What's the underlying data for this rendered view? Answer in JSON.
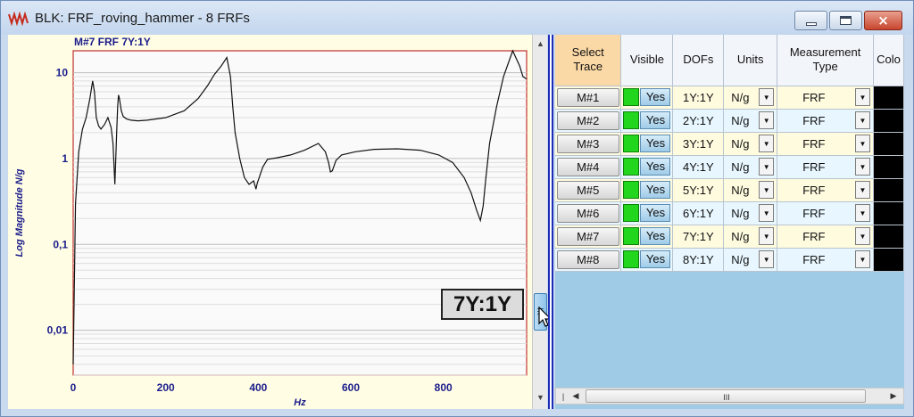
{
  "window": {
    "title": "BLK: FRF_roving_hammer - 8 FRFs",
    "buttons": {
      "minimize": "minimize",
      "maximize": "maximize",
      "close": "×"
    }
  },
  "chart": {
    "title": "M#7  FRF 7Y:1Y",
    "trace_label": "7Y:1Y"
  },
  "chart_data": {
    "type": "line",
    "title": "M#7  FRF 7Y:1Y",
    "xlabel": "Hz",
    "ylabel": "Log Magnitude N/g",
    "xlim": [
      0,
      980
    ],
    "ylim": [
      0.003,
      18
    ],
    "y_scale": "log",
    "x_ticks": [
      "0",
      "200",
      "400",
      "600",
      "800"
    ],
    "y_ticks": [
      "0,01",
      "0,1",
      "1",
      "10"
    ],
    "grid": "horizontal log grid",
    "series": [
      {
        "x": [
          0,
          5,
          12,
          20,
          28,
          36,
          42,
          46,
          50,
          55,
          60,
          68,
          75,
          82,
          86,
          90,
          94,
          96,
          98,
          100,
          104,
          108,
          115,
          125,
          140,
          160,
          200,
          240,
          270,
          290,
          305,
          320,
          332,
          340,
          345,
          350,
          360,
          370,
          380,
          390,
          395,
          398,
          402,
          406,
          410,
          420,
          440,
          470,
          500,
          530,
          545,
          552,
          556,
          560,
          568,
          580,
          610,
          650,
          700,
          750,
          790,
          820,
          845,
          860,
          872,
          880,
          886,
          892,
          900,
          915,
          930,
          950,
          965,
          972,
          976,
          980
        ],
        "y": [
          0.004,
          0.3,
          1.2,
          2.2,
          3.0,
          5.0,
          8.0,
          6.0,
          3.0,
          2.4,
          2.2,
          2.5,
          3.0,
          2.3,
          1.5,
          0.5,
          2.0,
          4.0,
          5.5,
          5.0,
          3.6,
          3.1,
          2.9,
          2.8,
          2.75,
          2.8,
          3.0,
          3.6,
          5.0,
          7.0,
          9.5,
          12.0,
          15.0,
          9.0,
          4.0,
          2.0,
          1.0,
          0.6,
          0.5,
          0.55,
          0.44,
          0.52,
          0.6,
          0.7,
          0.8,
          0.98,
          1.02,
          1.1,
          1.25,
          1.5,
          1.2,
          0.9,
          0.7,
          0.72,
          0.95,
          1.1,
          1.2,
          1.28,
          1.3,
          1.25,
          1.1,
          0.9,
          0.6,
          0.4,
          0.25,
          0.19,
          0.28,
          0.6,
          1.5,
          4.0,
          9.0,
          18.0,
          12.0,
          9.0,
          8.7,
          8.5
        ]
      }
    ]
  },
  "grid": {
    "headers": {
      "select_trace": "Select Trace",
      "visible": "Visible",
      "dofs": "DOFs",
      "units": "Units",
      "measurement_type": "Measurement Type",
      "color": "Colo"
    },
    "rows": [
      {
        "trace": "M#1",
        "visible": "Yes",
        "dof": "1Y:1Y",
        "units": "N/g",
        "type": "FRF",
        "color": "#000000"
      },
      {
        "trace": "M#2",
        "visible": "Yes",
        "dof": "2Y:1Y",
        "units": "N/g",
        "type": "FRF",
        "color": "#000000"
      },
      {
        "trace": "M#3",
        "visible": "Yes",
        "dof": "3Y:1Y",
        "units": "N/g",
        "type": "FRF",
        "color": "#000000"
      },
      {
        "trace": "M#4",
        "visible": "Yes",
        "dof": "4Y:1Y",
        "units": "N/g",
        "type": "FRF",
        "color": "#000000"
      },
      {
        "trace": "M#5",
        "visible": "Yes",
        "dof": "5Y:1Y",
        "units": "N/g",
        "type": "FRF",
        "color": "#000000"
      },
      {
        "trace": "M#6",
        "visible": "Yes",
        "dof": "6Y:1Y",
        "units": "N/g",
        "type": "FRF",
        "color": "#000000"
      },
      {
        "trace": "M#7",
        "visible": "Yes",
        "dof": "7Y:1Y",
        "units": "N/g",
        "type": "FRF",
        "color": "#000000"
      },
      {
        "trace": "M#8",
        "visible": "Yes",
        "dof": "8Y:1Y",
        "units": "N/g",
        "type": "FRF",
        "color": "#000000"
      }
    ]
  },
  "scrollbars": {
    "hscroll_grip": "III"
  },
  "colors": {
    "plot_background": "#fffde3",
    "axis_frame": "#c03030",
    "axis_text": "#1a1c8c",
    "visible_green": "#22d61e"
  },
  "icons": {
    "app": "frf-waveform-icon",
    "cursor": "mouse-pointer-icon"
  }
}
